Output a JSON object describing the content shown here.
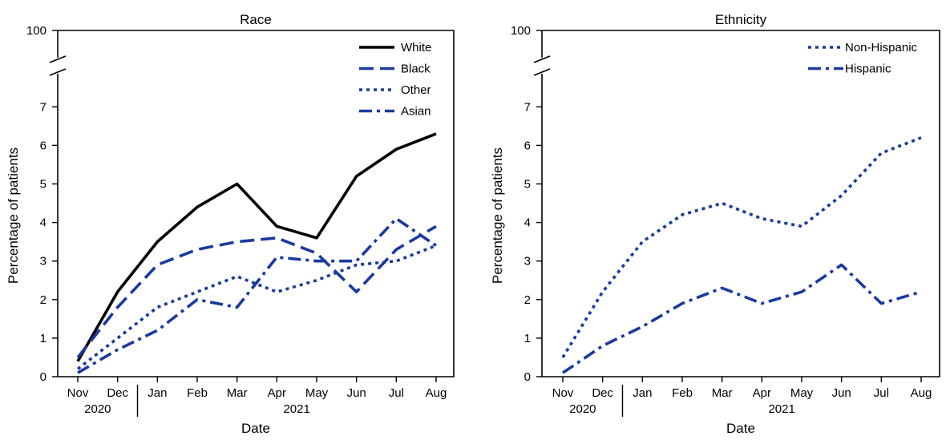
{
  "chart_data": [
    {
      "type": "line",
      "title": "Race",
      "xlabel": "Date",
      "ylabel": "Percentage of patients",
      "categories": [
        "Nov",
        "Dec",
        "Jan",
        "Feb",
        "Mar",
        "Apr",
        "May",
        "Jun",
        "Jul",
        "Aug"
      ],
      "year_labels": [
        "2020",
        "2021"
      ],
      "yticks": [
        "0",
        "1",
        "2",
        "3",
        "4",
        "5",
        "6",
        "7",
        "100"
      ],
      "ylim": [
        0,
        100
      ],
      "axis_break": true,
      "legend_position": "top-right",
      "series": [
        {
          "name": "White",
          "dash": "solid",
          "color": "#000000",
          "values": [
            0.4,
            2.2,
            3.5,
            4.4,
            5.0,
            3.9,
            3.6,
            5.2,
            5.9,
            6.3
          ]
        },
        {
          "name": "Black",
          "dash": "dash",
          "color": "#1a3a9e",
          "values": [
            0.5,
            1.8,
            2.9,
            3.3,
            3.5,
            3.6,
            3.2,
            2.2,
            3.3,
            3.9
          ]
        },
        {
          "name": "Other",
          "dash": "dot",
          "color": "#1a3a9e",
          "values": [
            0.2,
            1.0,
            1.8,
            2.2,
            2.6,
            2.2,
            2.5,
            2.9,
            3.0,
            3.4
          ]
        },
        {
          "name": "Asian",
          "dash": "dashdot",
          "color": "#1a3a9e",
          "values": [
            0.1,
            0.7,
            1.2,
            2.0,
            1.8,
            3.1,
            3.0,
            3.0,
            4.1,
            3.4
          ]
        }
      ]
    },
    {
      "type": "line",
      "title": "Ethnicity",
      "xlabel": "Date",
      "ylabel": "Percentage of patients",
      "categories": [
        "Nov",
        "Dec",
        "Jan",
        "Feb",
        "Mar",
        "Apr",
        "May",
        "Jun",
        "Jul",
        "Aug"
      ],
      "year_labels": [
        "2020",
        "2021"
      ],
      "yticks": [
        "0",
        "1",
        "2",
        "3",
        "4",
        "5",
        "6",
        "7",
        "100"
      ],
      "ylim": [
        0,
        100
      ],
      "axis_break": true,
      "legend_position": "top-right",
      "series": [
        {
          "name": "Non-Hispanic",
          "dash": "dot",
          "color": "#1a3a9e",
          "values": [
            0.5,
            2.2,
            3.5,
            4.2,
            4.5,
            4.1,
            3.9,
            4.7,
            5.8,
            6.2
          ]
        },
        {
          "name": "Hispanic",
          "dash": "dashdot",
          "color": "#1a3a9e",
          "values": [
            0.1,
            0.8,
            1.3,
            1.9,
            2.3,
            1.9,
            2.2,
            2.9,
            1.9,
            2.2
          ]
        }
      ]
    }
  ]
}
